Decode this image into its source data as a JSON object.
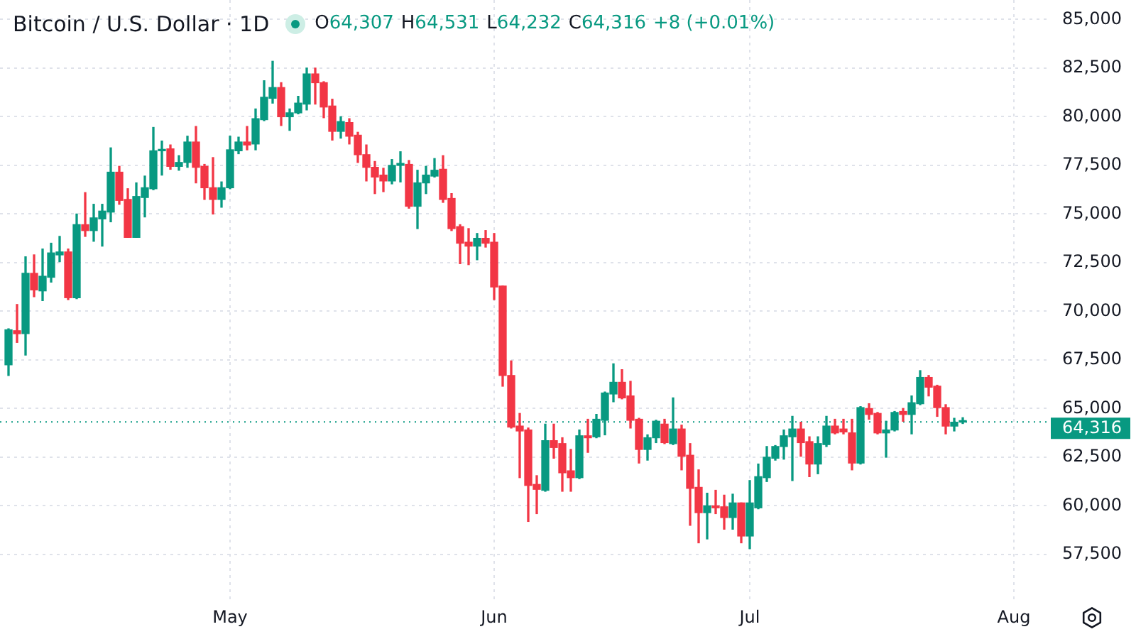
{
  "chart_data": {
    "type": "candlestick",
    "title": "Bitcoin / U.S. Dollar · 1D",
    "annotations": [
      "O64,307",
      "H64,531",
      "L64,232",
      "C64,316",
      "+8 (+0.01%)"
    ],
    "x": [
      "--04-05",
      "--04-06",
      "--04-07",
      "--04-08",
      "--04-09",
      "--04-10",
      "--04-11",
      "--04-12",
      "--04-13",
      "--04-14",
      "--04-15",
      "--04-16",
      "--04-17",
      "--04-18",
      "--04-19",
      "--04-20",
      "--04-21",
      "--04-22",
      "--04-23",
      "--04-24",
      "--04-25",
      "--04-26",
      "--04-27",
      "--04-28",
      "--04-29",
      "--04-30",
      "--05-01",
      "--05-02",
      "--05-03",
      "--05-04",
      "--05-05",
      "--05-06",
      "--05-07",
      "--05-08",
      "--05-09",
      "--05-10",
      "--05-11",
      "--05-12",
      "--05-13",
      "--05-14",
      "--05-15",
      "--05-16",
      "--05-17",
      "--05-18",
      "--05-19",
      "--05-20",
      "--05-21",
      "--05-22",
      "--05-23",
      "--05-24",
      "--05-25",
      "--05-26",
      "--05-27",
      "--05-28",
      "--05-29",
      "--05-30",
      "--05-31",
      "--06-01",
      "--06-02",
      "--06-03",
      "--06-04",
      "--06-05",
      "--06-06",
      "--06-07",
      "--06-08",
      "--06-09",
      "--06-10",
      "--06-11",
      "--06-12",
      "--06-13",
      "--06-14",
      "--06-15",
      "--06-16",
      "--06-17",
      "--06-18",
      "--06-19",
      "--06-20",
      "--06-21",
      "--06-22",
      "--06-23",
      "--06-24",
      "--06-25",
      "--06-26",
      "--06-27",
      "--06-28",
      "--06-29",
      "--06-30",
      "--07-01",
      "--07-02",
      "--07-03",
      "--07-04",
      "--07-05",
      "--07-06",
      "--07-07",
      "--07-08",
      "--07-09",
      "--07-10",
      "--07-11",
      "--07-12",
      "--07-13",
      "--07-14",
      "--07-15",
      "--07-16",
      "--07-17",
      "--07-18",
      "--07-19",
      "--07-20",
      "--07-21",
      "--07-22",
      "--07-23",
      "--07-24",
      "--07-25",
      "--07-26"
    ],
    "ohlc": [
      [
        67250,
        69100,
        66700,
        69050
      ],
      [
        69000,
        70350,
        68400,
        68850
      ],
      [
        68850,
        72800,
        67750,
        71950
      ],
      [
        71950,
        72900,
        70750,
        71100
      ],
      [
        71050,
        73200,
        70550,
        71800
      ],
      [
        71750,
        73500,
        71500,
        73000
      ],
      [
        72900,
        73850,
        72550,
        73050
      ],
      [
        73050,
        73200,
        70600,
        70700
      ],
      [
        70700,
        75000,
        70650,
        74450
      ],
      [
        74450,
        76100,
        73850,
        74150
      ],
      [
        74150,
        75500,
        73600,
        74800
      ],
      [
        74750,
        75500,
        73350,
        75150
      ],
      [
        75100,
        78400,
        74600,
        77150
      ],
      [
        77150,
        77450,
        75500,
        75700
      ],
      [
        75750,
        76300,
        73800,
        73800
      ],
      [
        73800,
        76600,
        73800,
        75900
      ],
      [
        75850,
        76950,
        74850,
        76350
      ],
      [
        76300,
        79450,
        76250,
        78250
      ],
      [
        78250,
        78750,
        77000,
        78300
      ],
      [
        78350,
        78550,
        77300,
        77450
      ],
      [
        77450,
        78000,
        77250,
        77650
      ],
      [
        77650,
        79000,
        77400,
        78700
      ],
      [
        78700,
        79500,
        76600,
        77400
      ],
      [
        77450,
        77550,
        75750,
        76350
      ],
      [
        76350,
        77900,
        75000,
        75750
      ],
      [
        75750,
        76650,
        75350,
        76350
      ],
      [
        76350,
        79000,
        76300,
        78300
      ],
      [
        78250,
        78950,
        78100,
        78700
      ],
      [
        78700,
        79500,
        78300,
        78550
      ],
      [
        78600,
        80400,
        78300,
        79900
      ],
      [
        79850,
        81850,
        79800,
        81000
      ],
      [
        80950,
        82850,
        80700,
        81500
      ],
      [
        81500,
        81750,
        79550,
        80000
      ],
      [
        80000,
        80400,
        79300,
        80200
      ],
      [
        80200,
        81050,
        80150,
        80700
      ],
      [
        80650,
        82500,
        80350,
        82200
      ],
      [
        82200,
        82500,
        80650,
        81750
      ],
      [
        81750,
        81800,
        79950,
        80500
      ],
      [
        80550,
        80900,
        78800,
        79250
      ],
      [
        79250,
        80000,
        78900,
        79750
      ],
      [
        79700,
        79900,
        78600,
        79000
      ],
      [
        79050,
        79200,
        77650,
        78050
      ],
      [
        78050,
        78550,
        76700,
        77400
      ],
      [
        77400,
        77700,
        76050,
        76900
      ],
      [
        77000,
        77350,
        76150,
        76700
      ],
      [
        76700,
        77800,
        76550,
        77500
      ],
      [
        77500,
        78200,
        76650,
        77600
      ],
      [
        77550,
        77750,
        75300,
        75400
      ],
      [
        75400,
        77250,
        74250,
        76600
      ],
      [
        76600,
        77450,
        76050,
        77000
      ],
      [
        76950,
        77850,
        76900,
        77250
      ],
      [
        77300,
        78000,
        75600,
        75750
      ],
      [
        75800,
        76050,
        74150,
        74250
      ],
      [
        74350,
        74450,
        72450,
        73500
      ],
      [
        73550,
        74250,
        72400,
        73350
      ],
      [
        73350,
        74000,
        72650,
        73750
      ],
      [
        73750,
        74150,
        73300,
        73500
      ],
      [
        73550,
        74000,
        70600,
        71250
      ],
      [
        71300,
        71300,
        66150,
        66700
      ],
      [
        66700,
        67450,
        64000,
        64050
      ],
      [
        64100,
        64750,
        61450,
        63850
      ],
      [
        63900,
        64000,
        59200,
        61050
      ],
      [
        61100,
        61550,
        59600,
        60850
      ],
      [
        60800,
        64200,
        60750,
        63350
      ],
      [
        63350,
        64200,
        62450,
        63000
      ],
      [
        63200,
        63500,
        60750,
        61700
      ],
      [
        61800,
        62900,
        60750,
        61450
      ],
      [
        61450,
        63900,
        61400,
        63600
      ],
      [
        63600,
        64450,
        62750,
        63500
      ],
      [
        63550,
        64700,
        63500,
        64450
      ],
      [
        64400,
        65850,
        63650,
        65800
      ],
      [
        65750,
        67300,
        65350,
        66350
      ],
      [
        66350,
        67000,
        65500,
        65550
      ],
      [
        65650,
        66400,
        64000,
        64400
      ],
      [
        64450,
        64500,
        62200,
        62900
      ],
      [
        62900,
        63650,
        62350,
        63500
      ],
      [
        63500,
        64400,
        63250,
        64350
      ],
      [
        64200,
        64450,
        63200,
        63250
      ],
      [
        63200,
        65550,
        63150,
        63950
      ],
      [
        63950,
        64150,
        61850,
        62550
      ],
      [
        62600,
        63200,
        59000,
        60900
      ],
      [
        60950,
        61850,
        58100,
        59650
      ],
      [
        59650,
        60650,
        58300,
        60000
      ],
      [
        60000,
        60800,
        59600,
        59900
      ],
      [
        59950,
        60550,
        58800,
        59400
      ],
      [
        59400,
        60600,
        58800,
        60150
      ],
      [
        60150,
        60150,
        58100,
        58450
      ],
      [
        58450,
        61300,
        57800,
        60150
      ],
      [
        59900,
        62150,
        59850,
        61500
      ],
      [
        61450,
        63050,
        61250,
        62500
      ],
      [
        62450,
        63100,
        62350,
        63050
      ],
      [
        63050,
        63900,
        62400,
        63600
      ],
      [
        63550,
        64600,
        61300,
        63950
      ],
      [
        63950,
        64300,
        62550,
        63250
      ],
      [
        63300,
        63550,
        61500,
        62150
      ],
      [
        62150,
        63550,
        61650,
        63200
      ],
      [
        63150,
        64600,
        63050,
        64100
      ],
      [
        64100,
        64450,
        63700,
        63750
      ],
      [
        63950,
        64450,
        63700,
        63800
      ],
      [
        63750,
        64450,
        61850,
        62200
      ],
      [
        62200,
        65100,
        62150,
        65050
      ],
      [
        65000,
        65250,
        64450,
        64700
      ],
      [
        64750,
        64800,
        63700,
        63750
      ],
      [
        63750,
        64350,
        62500,
        63900
      ],
      [
        63900,
        64850,
        63850,
        64800
      ],
      [
        64850,
        65000,
        64350,
        64700
      ],
      [
        64700,
        65650,
        63700,
        65300
      ],
      [
        65250,
        66950,
        65200,
        66600
      ],
      [
        66600,
        66700,
        65650,
        66100
      ],
      [
        66150,
        66200,
        64600,
        65050
      ],
      [
        65050,
        65200,
        63700,
        64100
      ],
      [
        64100,
        64500,
        63850,
        64300
      ],
      [
        64307,
        64531,
        64232,
        64316
      ]
    ],
    "colors": [
      "#089981",
      "#f23645",
      "#089981",
      "#f23645",
      "#089981",
      "#089981",
      "#089981",
      "#f23645",
      "#089981",
      "#f23645",
      "#089981",
      "#089981",
      "#089981",
      "#f23645",
      "#f23645",
      "#089981",
      "#089981",
      "#089981",
      "#089981",
      "#f23645",
      "#089981",
      "#089981",
      "#f23645",
      "#f23645",
      "#f23645",
      "#089981",
      "#089981",
      "#089981",
      "#f23645",
      "#089981",
      "#089981",
      "#089981",
      "#f23645",
      "#089981",
      "#089981",
      "#089981",
      "#f23645",
      "#f23645",
      "#f23645",
      "#089981",
      "#f23645",
      "#f23645",
      "#f23645",
      "#f23645",
      "#f23645",
      "#089981",
      "#089981",
      "#f23645",
      "#089981",
      "#089981",
      "#089981",
      "#f23645",
      "#f23645",
      "#f23645",
      "#f23645",
      "#089981",
      "#f23645",
      "#f23645",
      "#f23645",
      "#f23645",
      "#f23645",
      "#f23645",
      "#f23645",
      "#089981",
      "#f23645",
      "#f23645",
      "#f23645",
      "#089981",
      "#f23645",
      "#089981",
      "#089981",
      "#089981",
      "#f23645",
      "#f23645",
      "#f23645",
      "#089981",
      "#089981",
      "#f23645",
      "#089981",
      "#f23645",
      "#f23645",
      "#f23645",
      "#089981",
      "#f23645",
      "#f23645",
      "#089981",
      "#f23645",
      "#089981",
      "#089981",
      "#089981",
      "#089981",
      "#089981",
      "#089981",
      "#f23645",
      "#f23645",
      "#089981",
      "#089981",
      "#f23645",
      "#f23645",
      "#f23645",
      "#089981",
      "#f23645",
      "#f23645",
      "#089981",
      "#089981",
      "#f23645",
      "#089981",
      "#089981",
      "#f23645",
      "#f23645",
      "#f23645",
      "#089981",
      "#089981"
    ],
    "xlim": [
      "--04-04",
      "--08-05"
    ],
    "xticks": [
      {
        "value": "--05-01",
        "label": "May"
      },
      {
        "value": "--06-01",
        "label": "Jun"
      },
      {
        "value": "--07-01",
        "label": "Jul"
      },
      {
        "value": "--08-01",
        "label": "Aug"
      }
    ],
    "ylim": [
      55200,
      86000
    ],
    "yticks": [
      {
        "value": 57500,
        "label": "57,500"
      },
      {
        "value": 60000,
        "label": "60,000"
      },
      {
        "value": 62500,
        "label": "62,500"
      },
      {
        "value": 65000,
        "label": "65,000"
      },
      {
        "value": 67500,
        "label": "67,500"
      },
      {
        "value": 70000,
        "label": "70,000"
      },
      {
        "value": 72500,
        "label": "72,500"
      },
      {
        "value": 75000,
        "label": "75,000"
      },
      {
        "value": 77500,
        "label": "77,500"
      },
      {
        "value": 80000,
        "label": "80,000"
      },
      {
        "value": 82500,
        "label": "82,500"
      },
      {
        "value": 85000,
        "label": "85,000"
      }
    ],
    "ref_lines": [
      {
        "axis": "y",
        "value": 64316,
        "label": "64,316",
        "color": "#089981",
        "line_style": "dotted"
      }
    ],
    "grid": true
  }
}
